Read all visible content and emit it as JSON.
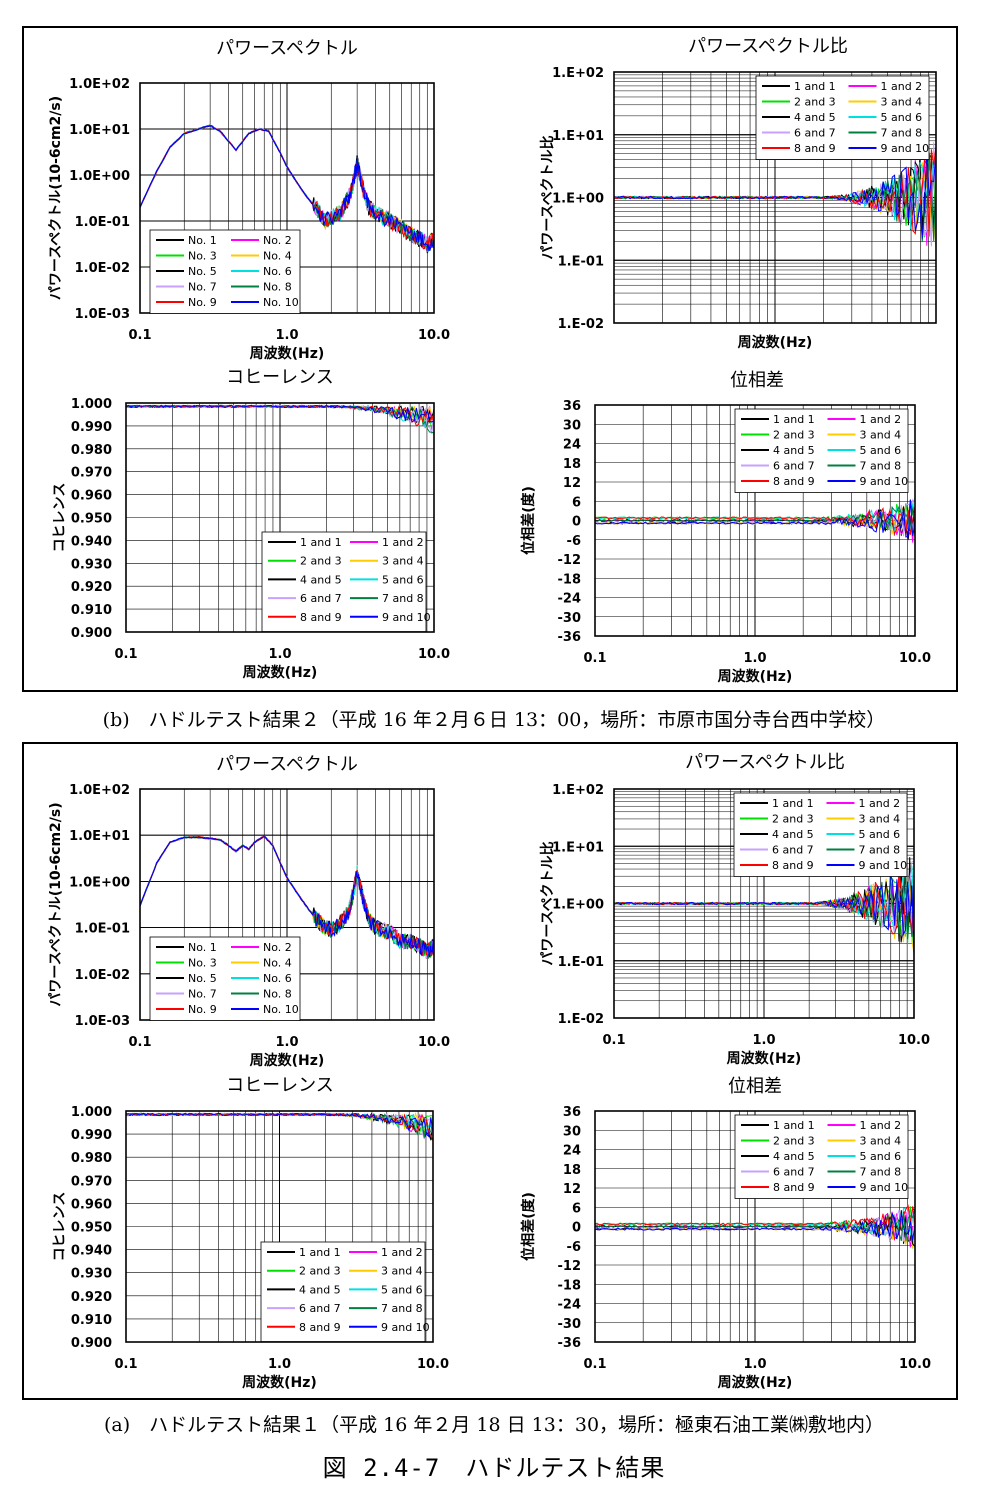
{
  "figure_title": "図 2.4-7　ハドルテスト結果",
  "sections": [
    {
      "caption": "(b)　ハドルテスト結果２（平成 16 年２月６日 13：00，場所：市原市国分寺台西中学校）",
      "panels": [
        {
          "title": "パワースペクトル",
          "ylabel": "パワースペクトル(10-6cm2/s)",
          "xlabel": "周波数(Hz)"
        },
        {
          "title": "パワースペクトル比",
          "ylabel": "パワースペクトル比",
          "xlabel": "周波数(Hz)"
        },
        {
          "title": "コヒーレンス",
          "ylabel": "コヒレンス",
          "xlabel": "周波数(Hz)"
        },
        {
          "title": "位相差",
          "ylabel": "位相差(度)",
          "xlabel": "周波数(Hz)"
        }
      ]
    },
    {
      "caption": "(a)　ハドルテスト結果１（平成 16 年２月 18 日 13：30，場所：極東石油工業㈱敷地内）",
      "panels": [
        {
          "title": "パワースペクトル",
          "ylabel": "パワースペクトル(10-6cm2/s)",
          "xlabel": "周波数(Hz)"
        },
        {
          "title": "パワースペクトル比",
          "ylabel": "パワースペクトル比",
          "xlabel": "周波数(Hz)"
        },
        {
          "title": "コヒーレンス",
          "ylabel": "コヒレンス",
          "xlabel": "周波数(Hz)"
        },
        {
          "title": "位相差",
          "ylabel": "位相差(度)",
          "xlabel": "周波数(Hz)"
        }
      ]
    }
  ],
  "colors": {
    "black": "#000000",
    "magenta": "#ff00ff",
    "green": "#00e000",
    "yellow": "#ffcc00",
    "cyan": "#00e0e0",
    "lavender": "#c8a0ff",
    "darkgreen": "#008040",
    "red": "#ff0000",
    "blue": "#0000ff"
  },
  "chart_data": [
    {
      "type": "line",
      "panel": "b-power",
      "title": "パワースペクトル",
      "xlabel": "周波数(Hz)",
      "ylabel": "パワースペクトル(10-6cm2/s)",
      "xscale": "log",
      "yscale": "log",
      "xlim": [
        0.1,
        10
      ],
      "ylim": [
        0.001,
        100
      ],
      "xticks": [
        "0.1",
        "1.0",
        "10.0"
      ],
      "yticks": [
        "1.0E-03",
        "1.0E-02",
        "1.0E-01",
        "1.0E+00",
        "1.0E+01",
        "1.0E+02"
      ],
      "legend_position": "bottom-left",
      "series_names": [
        "No. 1",
        "No. 2",
        "No. 3",
        "No. 4",
        "No. 5",
        "No. 6",
        "No. 7",
        "No. 8",
        "No. 9",
        "No. 10"
      ],
      "series_colors": [
        "black",
        "magenta",
        "green",
        "yellow",
        "black",
        "cyan",
        "lavender",
        "darkgreen",
        "red",
        "blue"
      ],
      "x": [
        0.1,
        0.13,
        0.16,
        0.2,
        0.25,
        0.3,
        0.35,
        0.45,
        0.55,
        0.65,
        0.75,
        0.9,
        1.0,
        1.2,
        1.4,
        1.6,
        1.8,
        2.0,
        2.3,
        2.6,
        2.8,
        3.0,
        3.3,
        3.6,
        4.0,
        5,
        6,
        7,
        8,
        9,
        10
      ],
      "values": [
        0.2,
        1.2,
        4.0,
        8.0,
        10.0,
        12.0,
        9.0,
        3.5,
        8.0,
        10.0,
        9.0,
        3.0,
        1.5,
        0.6,
        0.3,
        0.18,
        0.1,
        0.12,
        0.15,
        0.3,
        0.6,
        1.8,
        0.5,
        0.2,
        0.15,
        0.1,
        0.07,
        0.05,
        0.04,
        0.03,
        0.04
      ]
    },
    {
      "type": "line",
      "panel": "b-ratio",
      "title": "パワースペクトル比",
      "xlabel": "周波数(Hz)",
      "ylabel": "パワースペクトル比",
      "xscale": "log",
      "yscale": "log",
      "xlim": [
        0.1,
        10
      ],
      "ylim": [
        0.01,
        100
      ],
      "yticks": [
        "1.E-02",
        "1.E-01",
        "1.E+00",
        "1.E+01",
        "1.E+02"
      ],
      "legend_position": "top-right",
      "series_names": [
        "1 and 1",
        "1 and 2",
        "2 and 3",
        "3 and 4",
        "4 and 5",
        "5 and 6",
        "6 and 7",
        "7 and 8",
        "8 and 9",
        "9 and 10"
      ],
      "series_colors": [
        "black",
        "magenta",
        "green",
        "yellow",
        "black",
        "cyan",
        "lavender",
        "darkgreen",
        "red",
        "blue"
      ],
      "baseline": 1.0
    },
    {
      "type": "line",
      "panel": "b-coherence",
      "title": "コヒーレンス",
      "xlabel": "周波数(Hz)",
      "ylabel": "コヒレンス",
      "xscale": "log",
      "xlim": [
        0.1,
        10
      ],
      "ylim": [
        0.9,
        1.0
      ],
      "xticks": [
        "0.1",
        "1.0",
        "10.0"
      ],
      "yticks": [
        "0.900",
        "0.910",
        "0.920",
        "0.930",
        "0.940",
        "0.950",
        "0.960",
        "0.970",
        "0.980",
        "0.990",
        "1.000"
      ],
      "legend_position": "bottom-right",
      "series_names": [
        "1 and 1",
        "1 and 2",
        "2 and 3",
        "3 and 4",
        "4 and 5",
        "5 and 6",
        "6 and 7",
        "7 and 8",
        "8 and 9",
        "9 and 10"
      ],
      "series_colors": [
        "black",
        "magenta",
        "green",
        "yellow",
        "black",
        "cyan",
        "lavender",
        "darkgreen",
        "red",
        "blue"
      ],
      "baseline": 0.999
    },
    {
      "type": "line",
      "panel": "b-phase",
      "title": "位相差",
      "xlabel": "周波数(Hz)",
      "ylabel": "位相差(度)",
      "xscale": "log",
      "xlim": [
        0.1,
        10
      ],
      "ylim": [
        -36,
        36
      ],
      "xticks": [
        "0.1",
        "1.0",
        "10.0"
      ],
      "yticks": [
        "-36",
        "-30",
        "-24",
        "-18",
        "-12",
        "-6",
        "0",
        "6",
        "12",
        "18",
        "24",
        "30",
        "36"
      ],
      "legend_position": "top-right",
      "series_names": [
        "1 and 1",
        "1 and 2",
        "2 and 3",
        "3 and 4",
        "4 and 5",
        "5 and 6",
        "6 and 7",
        "7 and 8",
        "8 and 9",
        "9 and 10"
      ],
      "series_colors": [
        "black",
        "magenta",
        "green",
        "yellow",
        "black",
        "cyan",
        "lavender",
        "darkgreen",
        "red",
        "blue"
      ],
      "baseline": 0
    },
    {
      "type": "line",
      "panel": "a-power",
      "title": "パワースペクトル",
      "xlabel": "周波数(Hz)",
      "ylabel": "パワースペクトル(10-6cm2/s)",
      "xscale": "log",
      "yscale": "log",
      "xlim": [
        0.1,
        10
      ],
      "ylim": [
        0.001,
        100
      ],
      "xticks": [
        "0.1",
        "1.0",
        "10.0"
      ],
      "yticks": [
        "1.0E-03",
        "1.0E-02",
        "1.0E-01",
        "1.0E+00",
        "1.0E+01",
        "1.0E+02"
      ],
      "legend_position": "bottom-left",
      "series_names": [
        "No. 1",
        "No. 2",
        "No. 3",
        "No. 4",
        "No. 5",
        "No. 6",
        "No. 7",
        "No. 8",
        "No. 9",
        "No. 10"
      ],
      "series_colors": [
        "black",
        "magenta",
        "green",
        "yellow",
        "black",
        "cyan",
        "lavender",
        "darkgreen",
        "red",
        "blue"
      ],
      "x": [
        0.1,
        0.13,
        0.16,
        0.2,
        0.25,
        0.3,
        0.35,
        0.4,
        0.45,
        0.5,
        0.55,
        0.6,
        0.7,
        0.8,
        0.9,
        1.0,
        1.2,
        1.4,
        1.6,
        1.8,
        2.0,
        2.3,
        2.6,
        2.8,
        3.0,
        3.3,
        3.6,
        4.0,
        5,
        6,
        7,
        8,
        9,
        10
      ],
      "values": [
        0.3,
        2.5,
        7.0,
        9.0,
        9.0,
        8.5,
        8.0,
        6.0,
        4.5,
        6.0,
        5.0,
        7.0,
        9.5,
        6.0,
        2.5,
        1.2,
        0.5,
        0.25,
        0.15,
        0.1,
        0.09,
        0.12,
        0.2,
        0.5,
        1.5,
        0.4,
        0.15,
        0.1,
        0.08,
        0.05,
        0.05,
        0.04,
        0.03,
        0.04
      ]
    },
    {
      "type": "line",
      "panel": "a-ratio",
      "title": "パワースペクトル比",
      "xlabel": "周波数(Hz)",
      "ylabel": "パワースペクトル比",
      "xscale": "log",
      "yscale": "log",
      "xlim": [
        0.1,
        10
      ],
      "ylim": [
        0.01,
        100
      ],
      "xticks": [
        "0.1",
        "1.0",
        "10.0"
      ],
      "yticks": [
        "1.E-02",
        "1.E-01",
        "1.E+00",
        "1.E+01",
        "1.E+02"
      ],
      "legend_position": "top-right",
      "series_names": [
        "1 and 1",
        "1 and 2",
        "2 and 3",
        "3 and 4",
        "4 and 5",
        "5 and 6",
        "6 and 7",
        "7 and 8",
        "8 and 9",
        "9 and 10"
      ],
      "series_colors": [
        "black",
        "magenta",
        "green",
        "yellow",
        "black",
        "cyan",
        "lavender",
        "darkgreen",
        "red",
        "blue"
      ],
      "baseline": 1.0
    },
    {
      "type": "line",
      "panel": "a-coherence",
      "title": "コヒーレンス",
      "xlabel": "周波数(Hz)",
      "ylabel": "コヒレンス",
      "xscale": "log",
      "xlim": [
        0.1,
        10
      ],
      "ylim": [
        0.9,
        1.0
      ],
      "xticks": [
        "0.1",
        "1.0",
        "10.0"
      ],
      "yticks": [
        "0.900",
        "0.910",
        "0.920",
        "0.930",
        "0.940",
        "0.950",
        "0.960",
        "0.970",
        "0.980",
        "0.990",
        "1.000"
      ],
      "legend_position": "bottom-right",
      "series_names": [
        "1 and 1",
        "1 and 2",
        "2 and 3",
        "3 and 4",
        "4 and 5",
        "5 and 6",
        "6 and 7",
        "7 and 8",
        "8 and 9",
        "9 and 10"
      ],
      "series_colors": [
        "black",
        "magenta",
        "green",
        "yellow",
        "black",
        "cyan",
        "lavender",
        "darkgreen",
        "red",
        "blue"
      ],
      "baseline": 0.999
    },
    {
      "type": "line",
      "panel": "a-phase",
      "title": "位相差",
      "xlabel": "周波数(Hz)",
      "ylabel": "位相差(度)",
      "xscale": "log",
      "xlim": [
        0.1,
        10
      ],
      "ylim": [
        -36,
        36
      ],
      "xticks": [
        "0.1",
        "1.0",
        "10.0"
      ],
      "yticks": [
        "-36",
        "-30",
        "-24",
        "-18",
        "-12",
        "-6",
        "0",
        "6",
        "12",
        "18",
        "24",
        "30",
        "36"
      ],
      "legend_position": "top-right",
      "series_names": [
        "1 and 1",
        "1 and 2",
        "2 and 3",
        "3 and 4",
        "4 and 5",
        "5 and 6",
        "6 and 7",
        "7 and 8",
        "8 and 9",
        "9 and 10"
      ],
      "series_colors": [
        "black",
        "magenta",
        "green",
        "yellow",
        "black",
        "cyan",
        "lavender",
        "darkgreen",
        "red",
        "blue"
      ],
      "baseline": 0
    }
  ]
}
